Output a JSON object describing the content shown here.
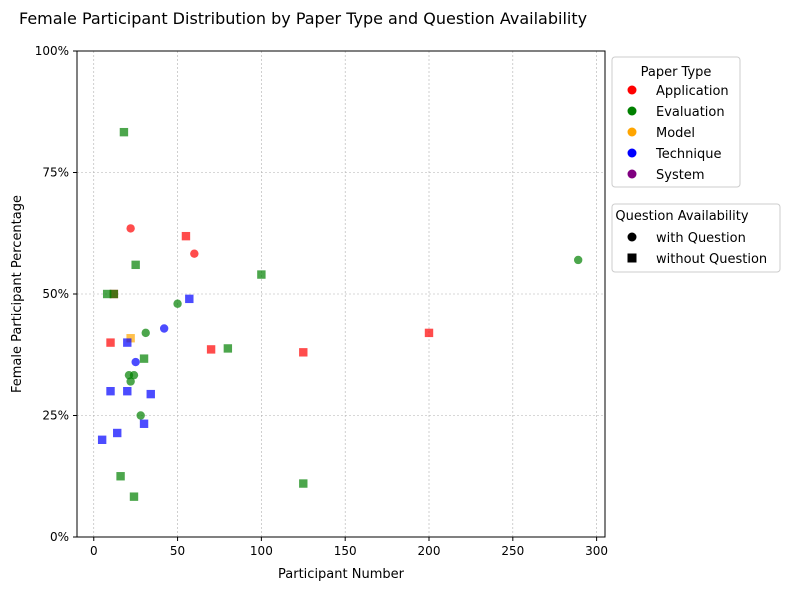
{
  "chart_data": {
    "type": "scatter",
    "title": "Female Participant Distribution by Paper Type and Question Availability",
    "xlabel": "Participant Number",
    "ylabel": "Female Participant Percentage",
    "xlim": [
      -10,
      305
    ],
    "ylim": [
      0,
      1
    ],
    "x_ticks": [
      0,
      50,
      100,
      150,
      200,
      250,
      300
    ],
    "y_ticks": [
      0,
      0.25,
      0.5,
      0.75,
      1.0
    ],
    "y_tick_labels": [
      "0%",
      "25%",
      "50%",
      "75%",
      "100%"
    ],
    "grid": true,
    "legend_paper_type": {
      "title": "Paper Type",
      "placement": "outside-right-top",
      "entries": [
        {
          "label": "Application",
          "color": "#ff0000"
        },
        {
          "label": "Evaluation",
          "color": "#008000"
        },
        {
          "label": "Model",
          "color": "#ffa500"
        },
        {
          "label": "Technique",
          "color": "#0000ff"
        },
        {
          "label": "System",
          "color": "#800080"
        }
      ]
    },
    "legend_question": {
      "title": "Question Availability",
      "placement": "outside-right",
      "entries": [
        {
          "label": "with Question",
          "marker": "circle"
        },
        {
          "label": "without Question",
          "marker": "square"
        }
      ]
    },
    "points": [
      {
        "x": 22,
        "y": 0.635,
        "type": "Application",
        "marker": "circle"
      },
      {
        "x": 60,
        "y": 0.583,
        "type": "Application",
        "marker": "circle"
      },
      {
        "x": 55,
        "y": 0.619,
        "type": "Application",
        "marker": "square"
      },
      {
        "x": 10,
        "y": 0.4,
        "type": "Application",
        "marker": "square"
      },
      {
        "x": 70,
        "y": 0.386,
        "type": "Application",
        "marker": "square"
      },
      {
        "x": 125,
        "y": 0.38,
        "type": "Application",
        "marker": "square"
      },
      {
        "x": 200,
        "y": 0.42,
        "type": "Application",
        "marker": "square"
      },
      {
        "x": 12,
        "y": 0.5,
        "type": "Application",
        "marker": "square"
      },
      {
        "x": 18,
        "y": 0.833,
        "type": "Evaluation",
        "marker": "square"
      },
      {
        "x": 25,
        "y": 0.56,
        "type": "Evaluation",
        "marker": "square"
      },
      {
        "x": 8,
        "y": 0.5,
        "type": "Evaluation",
        "marker": "square"
      },
      {
        "x": 12,
        "y": 0.5,
        "type": "Evaluation",
        "marker": "square"
      },
      {
        "x": 100,
        "y": 0.54,
        "type": "Evaluation",
        "marker": "square"
      },
      {
        "x": 289,
        "y": 0.57,
        "type": "Evaluation",
        "marker": "circle"
      },
      {
        "x": 50,
        "y": 0.48,
        "type": "Evaluation",
        "marker": "circle"
      },
      {
        "x": 31,
        "y": 0.42,
        "type": "Evaluation",
        "marker": "circle"
      },
      {
        "x": 30,
        "y": 0.367,
        "type": "Evaluation",
        "marker": "square"
      },
      {
        "x": 80,
        "y": 0.388,
        "type": "Evaluation",
        "marker": "square"
      },
      {
        "x": 21,
        "y": 0.333,
        "type": "Evaluation",
        "marker": "circle"
      },
      {
        "x": 24,
        "y": 0.333,
        "type": "Evaluation",
        "marker": "circle"
      },
      {
        "x": 22,
        "y": 0.32,
        "type": "Evaluation",
        "marker": "circle"
      },
      {
        "x": 28,
        "y": 0.25,
        "type": "Evaluation",
        "marker": "circle"
      },
      {
        "x": 16,
        "y": 0.125,
        "type": "Evaluation",
        "marker": "square"
      },
      {
        "x": 24,
        "y": 0.083,
        "type": "Evaluation",
        "marker": "square"
      },
      {
        "x": 125,
        "y": 0.11,
        "type": "Evaluation",
        "marker": "square"
      },
      {
        "x": 22,
        "y": 0.409,
        "type": "Model",
        "marker": "square"
      },
      {
        "x": 57,
        "y": 0.49,
        "type": "Technique",
        "marker": "square"
      },
      {
        "x": 42,
        "y": 0.429,
        "type": "Technique",
        "marker": "circle"
      },
      {
        "x": 20,
        "y": 0.4,
        "type": "Technique",
        "marker": "square"
      },
      {
        "x": 25,
        "y": 0.36,
        "type": "Technique",
        "marker": "circle"
      },
      {
        "x": 10,
        "y": 0.3,
        "type": "Technique",
        "marker": "square"
      },
      {
        "x": 20,
        "y": 0.3,
        "type": "Technique",
        "marker": "square"
      },
      {
        "x": 34,
        "y": 0.294,
        "type": "Technique",
        "marker": "square"
      },
      {
        "x": 30,
        "y": 0.233,
        "type": "Technique",
        "marker": "square"
      },
      {
        "x": 14,
        "y": 0.214,
        "type": "Technique",
        "marker": "square"
      },
      {
        "x": 5,
        "y": 0.2,
        "type": "Technique",
        "marker": "square"
      }
    ]
  }
}
